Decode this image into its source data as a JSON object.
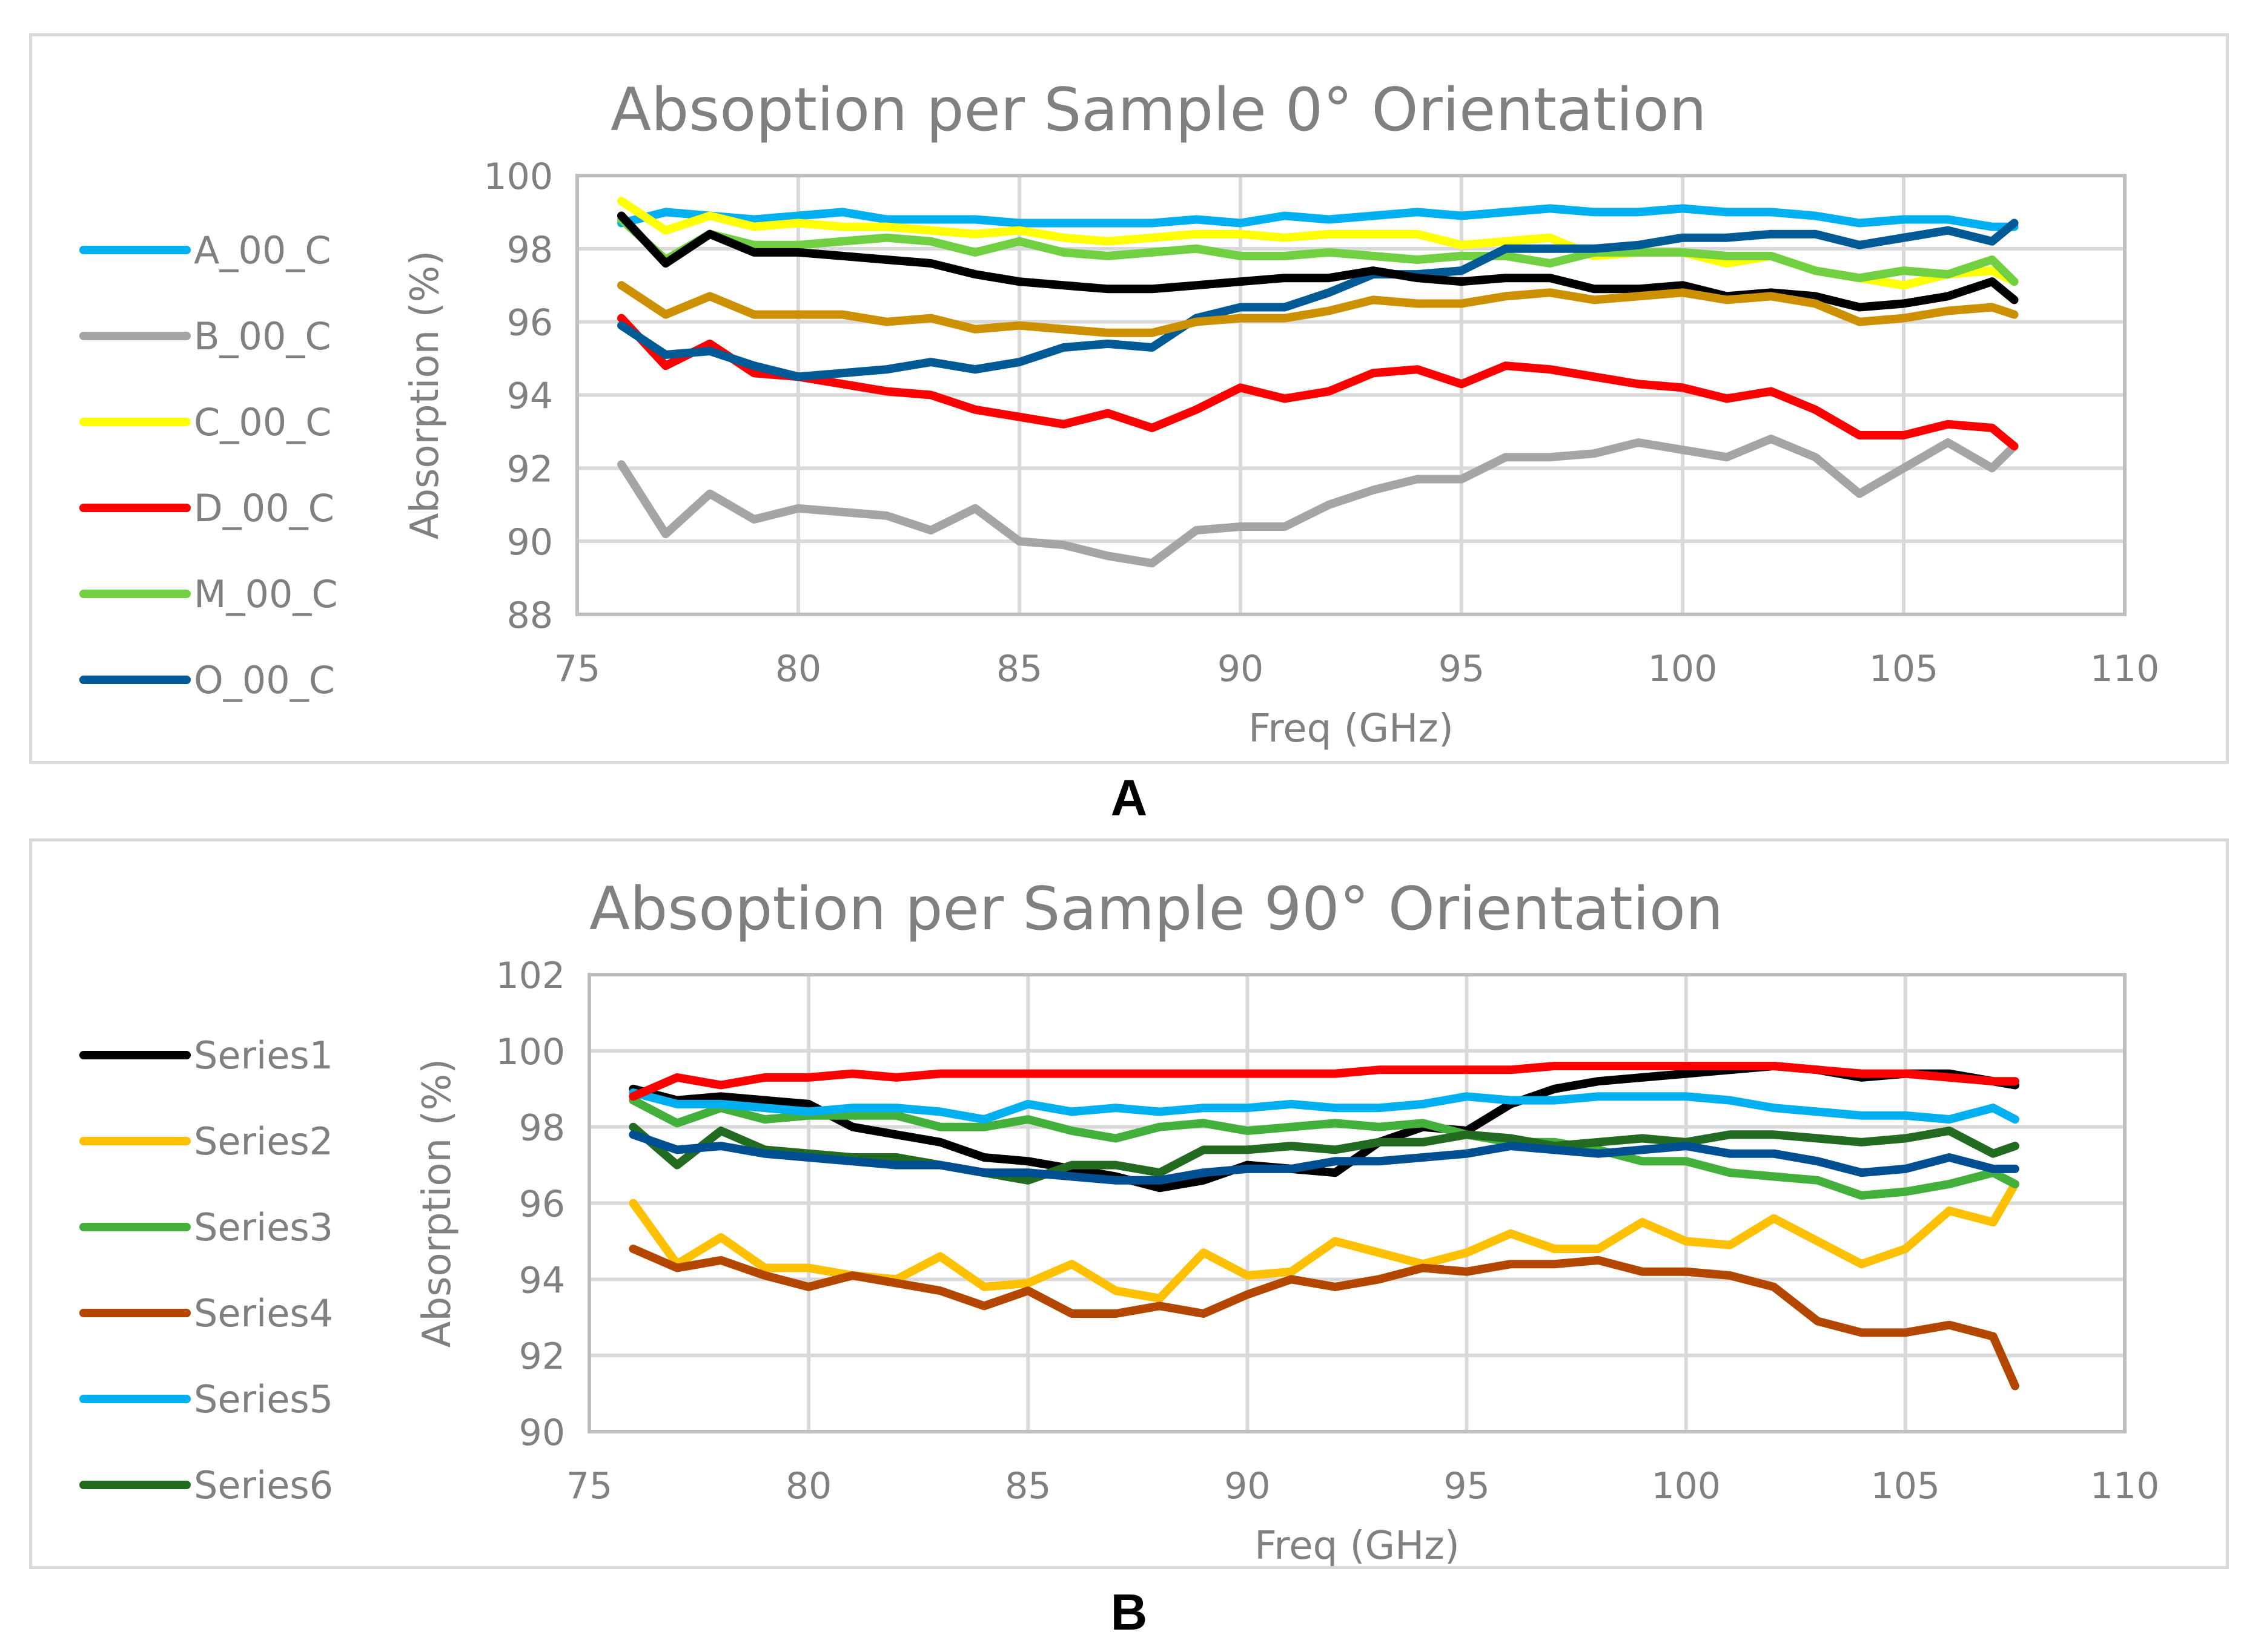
{
  "figure_labels": {
    "a": "A",
    "b": "B"
  },
  "chart_data": [
    {
      "type": "line",
      "title": "Absoption per Sample 0° Orientation",
      "xlabel": "Freq (GHz)",
      "ylabel": "Absorption (%)",
      "xlim": [
        75,
        110
      ],
      "ylim": [
        88,
        100
      ],
      "xticks": [
        75,
        80,
        85,
        90,
        95,
        100,
        105,
        110
      ],
      "yticks": [
        88,
        90,
        92,
        94,
        96,
        98,
        100
      ],
      "grid": true,
      "legend_position": "left",
      "x": [
        76,
        77,
        78,
        79,
        80,
        81,
        82,
        83,
        84,
        85,
        86,
        87,
        88,
        89,
        90,
        91,
        92,
        93,
        94,
        95,
        96,
        97,
        98,
        99,
        100,
        101,
        102,
        103,
        104,
        105,
        106,
        107,
        107.5
      ],
      "series": [
        {
          "name": "A_00_C",
          "in_legend": true,
          "color": "#00B0F0",
          "values": [
            98.7,
            99.0,
            98.9,
            98.8,
            98.9,
            99.0,
            98.8,
            98.8,
            98.8,
            98.7,
            98.7,
            98.7,
            98.7,
            98.8,
            98.7,
            98.9,
            98.8,
            98.9,
            99.0,
            98.9,
            99.0,
            99.1,
            99.0,
            99.0,
            99.1,
            99.0,
            99.0,
            98.9,
            98.7,
            98.8,
            98.8,
            98.6,
            98.6
          ]
        },
        {
          "name": "B_00_C",
          "in_legend": true,
          "color": "#A5A5A5",
          "values": [
            92.1,
            90.2,
            91.3,
            90.6,
            90.9,
            90.8,
            90.7,
            90.3,
            90.9,
            90.0,
            89.9,
            89.6,
            89.4,
            90.3,
            90.4,
            90.4,
            91.0,
            91.4,
            91.7,
            91.7,
            92.3,
            92.3,
            92.4,
            92.7,
            92.5,
            92.3,
            92.8,
            92.3,
            91.3,
            92.0,
            92.7,
            92.0,
            92.6
          ]
        },
        {
          "name": "C_00_C",
          "in_legend": true,
          "color": "#FFFF00",
          "values": [
            99.3,
            98.5,
            98.9,
            98.6,
            98.7,
            98.6,
            98.6,
            98.5,
            98.4,
            98.5,
            98.3,
            98.2,
            98.3,
            98.4,
            98.4,
            98.3,
            98.4,
            98.4,
            98.4,
            98.1,
            98.2,
            98.3,
            97.8,
            97.9,
            97.9,
            97.6,
            97.8,
            97.4,
            97.2,
            97.0,
            97.3,
            97.4,
            97.1
          ]
        },
        {
          "name": "D_00_C",
          "in_legend": true,
          "color": "#FF0000",
          "values": [
            96.1,
            94.8,
            95.4,
            94.6,
            94.5,
            94.3,
            94.1,
            94.0,
            93.6,
            93.4,
            93.2,
            93.5,
            93.1,
            93.6,
            94.2,
            93.9,
            94.1,
            94.6,
            94.7,
            94.3,
            94.8,
            94.7,
            94.5,
            94.3,
            94.2,
            93.9,
            94.1,
            93.6,
            92.9,
            92.9,
            93.2,
            93.1,
            92.6
          ]
        },
        {
          "name": "M_00_C",
          "in_legend": true,
          "color": "#70D042",
          "values": [
            98.8,
            97.7,
            98.4,
            98.1,
            98.1,
            98.2,
            98.3,
            98.2,
            97.9,
            98.2,
            97.9,
            97.8,
            97.9,
            98.0,
            97.8,
            97.8,
            97.9,
            97.8,
            97.7,
            97.8,
            97.8,
            97.6,
            97.9,
            97.9,
            97.9,
            97.8,
            97.8,
            97.4,
            97.2,
            97.4,
            97.3,
            97.7,
            97.1
          ]
        },
        {
          "name": "O_00_C",
          "in_legend": true,
          "color": "#005A96",
          "values": [
            95.9,
            95.1,
            95.2,
            94.8,
            94.5,
            94.6,
            94.7,
            94.9,
            94.7,
            94.9,
            95.3,
            95.4,
            95.3,
            96.1,
            96.4,
            96.4,
            96.8,
            97.3,
            97.3,
            97.4,
            98.0,
            98.0,
            98.0,
            98.1,
            98.3,
            98.3,
            98.4,
            98.4,
            98.1,
            98.3,
            98.5,
            98.2,
            98.7
          ]
        },
        {
          "name": "unlabeled-black",
          "in_legend": false,
          "color": "#000000",
          "values": [
            98.9,
            97.6,
            98.4,
            97.9,
            97.9,
            97.8,
            97.7,
            97.6,
            97.3,
            97.1,
            97.0,
            96.9,
            96.9,
            97.0,
            97.1,
            97.2,
            97.2,
            97.4,
            97.2,
            97.1,
            97.2,
            97.2,
            96.9,
            96.9,
            97.0,
            96.7,
            96.8,
            96.7,
            96.4,
            96.5,
            96.7,
            97.1,
            96.6
          ]
        },
        {
          "name": "unlabeled-gold",
          "in_legend": false,
          "color": "#CC9000",
          "values": [
            97.0,
            96.2,
            96.7,
            96.2,
            96.2,
            96.2,
            96.0,
            96.1,
            95.8,
            95.9,
            95.8,
            95.7,
            95.7,
            96.0,
            96.1,
            96.1,
            96.3,
            96.6,
            96.5,
            96.5,
            96.7,
            96.8,
            96.6,
            96.7,
            96.8,
            96.6,
            96.7,
            96.5,
            96.0,
            96.1,
            96.3,
            96.4,
            96.2
          ]
        }
      ]
    },
    {
      "type": "line",
      "title": "Absoption per Sample 90° Orientation",
      "xlabel": "Freq (GHz)",
      "ylabel": "Absorption (%)",
      "xlim": [
        75,
        110
      ],
      "ylim": [
        90,
        102
      ],
      "xticks": [
        75,
        80,
        85,
        90,
        95,
        100,
        105,
        110
      ],
      "yticks": [
        90,
        92,
        94,
        96,
        98,
        100,
        102
      ],
      "grid": true,
      "legend_position": "left",
      "x": [
        76,
        77,
        78,
        79,
        80,
        81,
        82,
        83,
        84,
        85,
        86,
        87,
        88,
        89,
        90,
        91,
        92,
        93,
        94,
        95,
        96,
        97,
        98,
        99,
        100,
        101,
        102,
        103,
        104,
        105,
        106,
        107,
        107.5
      ],
      "series": [
        {
          "name": "Series1",
          "in_legend": true,
          "color": "#000000",
          "values": [
            99.0,
            98.7,
            98.8,
            98.7,
            98.6,
            98.0,
            97.8,
            97.6,
            97.2,
            97.1,
            96.9,
            96.7,
            96.4,
            96.6,
            97.0,
            96.9,
            96.8,
            97.6,
            98.0,
            97.9,
            98.6,
            99.0,
            99.2,
            99.3,
            99.4,
            99.5,
            99.6,
            99.5,
            99.3,
            99.4,
            99.4,
            99.2,
            99.1
          ]
        },
        {
          "name": "Series2",
          "in_legend": true,
          "color": "#FFC000",
          "values": [
            96.0,
            94.4,
            95.1,
            94.3,
            94.3,
            94.1,
            94.0,
            94.6,
            93.8,
            93.9,
            94.4,
            93.7,
            93.5,
            94.7,
            94.1,
            94.2,
            95.0,
            94.7,
            94.4,
            94.7,
            95.2,
            94.8,
            94.8,
            95.5,
            95.0,
            94.9,
            95.6,
            95.0,
            94.4,
            94.8,
            95.8,
            95.5,
            96.5
          ]
        },
        {
          "name": "Series3",
          "in_legend": true,
          "color": "#44B03C",
          "values": [
            98.7,
            98.1,
            98.5,
            98.2,
            98.3,
            98.3,
            98.3,
            98.0,
            98.0,
            98.2,
            97.9,
            97.7,
            98.0,
            98.1,
            97.9,
            98.0,
            98.1,
            98.0,
            98.1,
            97.8,
            97.6,
            97.6,
            97.4,
            97.1,
            97.1,
            96.8,
            96.7,
            96.6,
            96.2,
            96.3,
            96.5,
            96.8,
            96.5
          ]
        },
        {
          "name": "Series4",
          "in_legend": true,
          "color": "#B34700",
          "values": [
            94.8,
            94.3,
            94.5,
            94.1,
            93.8,
            94.1,
            93.9,
            93.7,
            93.3,
            93.7,
            93.1,
            93.1,
            93.3,
            93.1,
            93.6,
            94.0,
            93.8,
            94.0,
            94.3,
            94.2,
            94.4,
            94.4,
            94.5,
            94.2,
            94.2,
            94.1,
            93.8,
            92.9,
            92.6,
            92.6,
            92.8,
            92.5,
            91.2
          ]
        },
        {
          "name": "Series5",
          "in_legend": true,
          "color": "#00B0F0",
          "values": [
            98.9,
            98.6,
            98.6,
            98.5,
            98.4,
            98.5,
            98.5,
            98.4,
            98.2,
            98.6,
            98.4,
            98.5,
            98.4,
            98.5,
            98.5,
            98.6,
            98.5,
            98.5,
            98.6,
            98.8,
            98.7,
            98.7,
            98.8,
            98.8,
            98.8,
            98.7,
            98.5,
            98.4,
            98.3,
            98.3,
            98.2,
            98.5,
            98.2
          ]
        },
        {
          "name": "Series6",
          "in_legend": true,
          "color": "#236B21",
          "values": [
            98.0,
            97.0,
            97.9,
            97.4,
            97.3,
            97.2,
            97.2,
            97.0,
            96.8,
            96.6,
            97.0,
            97.0,
            96.8,
            97.4,
            97.4,
            97.5,
            97.4,
            97.6,
            97.6,
            97.8,
            97.7,
            97.5,
            97.6,
            97.7,
            97.6,
            97.8,
            97.8,
            97.7,
            97.6,
            97.7,
            97.9,
            97.3,
            97.5
          ]
        },
        {
          "name": "unlabeled-red",
          "in_legend": false,
          "color": "#FF0000",
          "values": [
            98.8,
            99.3,
            99.1,
            99.3,
            99.3,
            99.4,
            99.3,
            99.4,
            99.4,
            99.4,
            99.4,
            99.4,
            99.4,
            99.4,
            99.4,
            99.4,
            99.4,
            99.5,
            99.5,
            99.5,
            99.5,
            99.6,
            99.6,
            99.6,
            99.6,
            99.6,
            99.6,
            99.5,
            99.4,
            99.4,
            99.3,
            99.2,
            99.2
          ]
        },
        {
          "name": "unlabeled-darkblue",
          "in_legend": false,
          "color": "#004F93",
          "values": [
            97.8,
            97.4,
            97.5,
            97.3,
            97.2,
            97.1,
            97.0,
            97.0,
            96.8,
            96.8,
            96.7,
            96.6,
            96.6,
            96.8,
            96.9,
            96.9,
            97.1,
            97.1,
            97.2,
            97.3,
            97.5,
            97.4,
            97.3,
            97.4,
            97.5,
            97.3,
            97.3,
            97.1,
            96.8,
            96.9,
            97.2,
            96.9,
            96.9
          ]
        }
      ]
    }
  ]
}
